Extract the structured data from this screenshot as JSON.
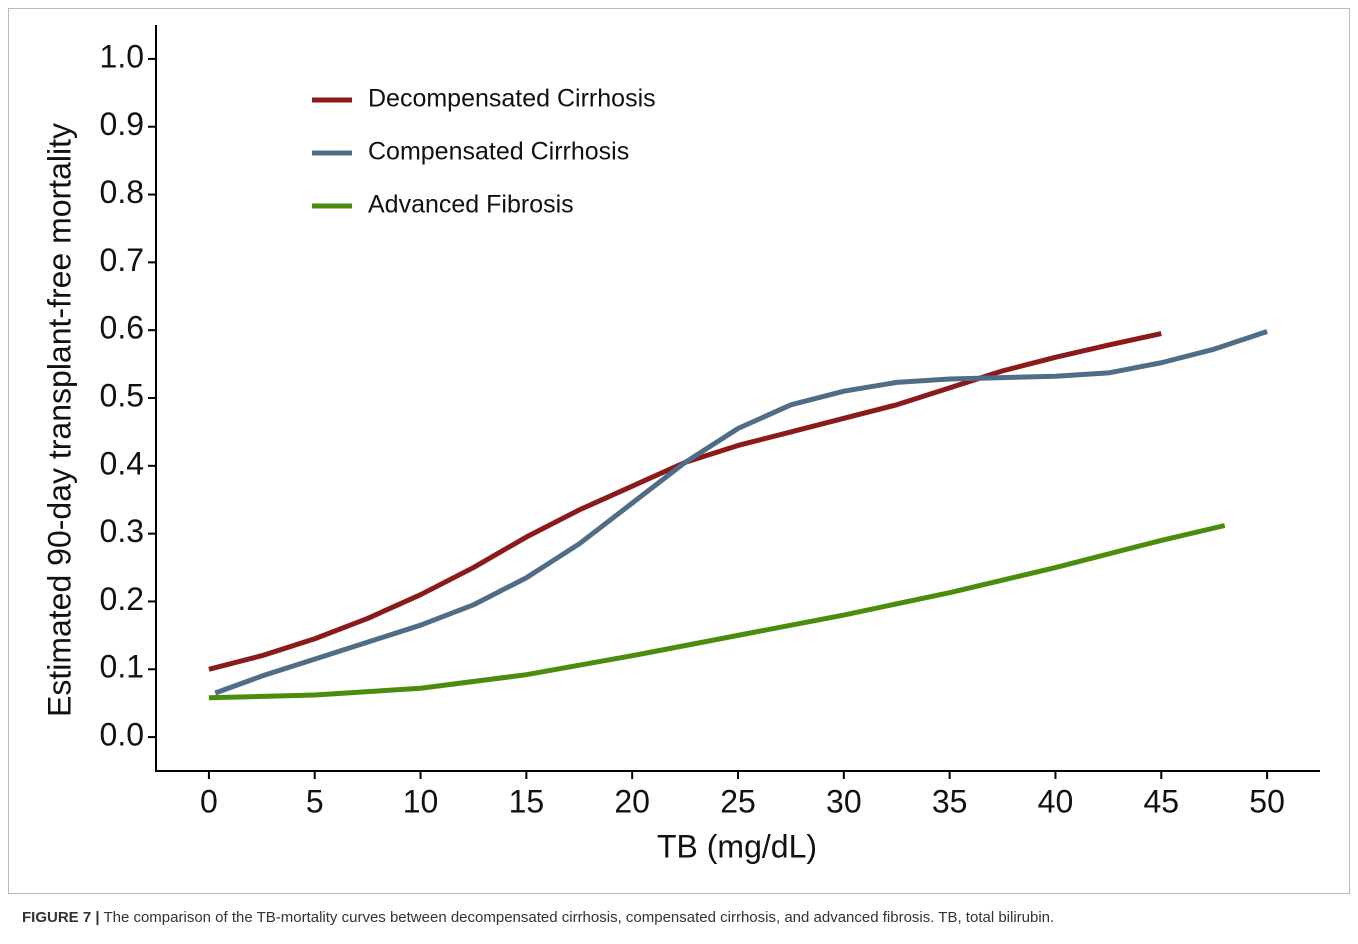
{
  "chart_data": {
    "type": "line",
    "x_label": "TB (mg/dL)",
    "y_label": "Estimated 90-day transplant-free mortality",
    "caption_label": "FIGURE 7 |",
    "caption": "The comparison of the TB-mortality curves between decompensated cirrhosis, compensated cirrhosis, and advanced fibrosis. TB, total bilirubin.",
    "xlim": [
      -2.5,
      52.5
    ],
    "ylim": [
      -0.05,
      1.05
    ],
    "xticks": [
      0,
      5,
      10,
      15,
      20,
      25,
      30,
      35,
      40,
      45,
      50
    ],
    "yticks": [
      {
        "value": 0,
        "label": "0.0"
      },
      0.1,
      0.2,
      0.3,
      0.4,
      0.5,
      0.6,
      0.7,
      0.8,
      0.9,
      {
        "value": 1,
        "label": "1.0"
      }
    ],
    "grid": false,
    "legend": "top-left",
    "series": [
      {
        "name": "Decompensated Cirrhosis",
        "color": "#8b1a1a",
        "x": [
          0,
          2.5,
          5,
          7.5,
          10,
          12.5,
          15,
          17.5,
          20,
          22.5,
          25,
          27.5,
          30,
          32.5,
          35,
          37.5,
          40,
          42.5,
          45
        ],
        "values": [
          0.1,
          0.12,
          0.145,
          0.175,
          0.21,
          0.25,
          0.295,
          0.335,
          0.37,
          0.405,
          0.43,
          0.45,
          0.47,
          0.49,
          0.515,
          0.54,
          0.56,
          0.578,
          0.595
        ]
      },
      {
        "name": "Compensated Cirrhosis",
        "color": "#4f6d86",
        "x": [
          0.3,
          2.5,
          5,
          7.5,
          10,
          12.5,
          15,
          17.5,
          20,
          22.5,
          25,
          27.5,
          30,
          32.5,
          35,
          37.5,
          40,
          42.5,
          45,
          47.5,
          50
        ],
        "values": [
          0.065,
          0.09,
          0.115,
          0.14,
          0.165,
          0.195,
          0.235,
          0.285,
          0.345,
          0.405,
          0.455,
          0.49,
          0.51,
          0.523,
          0.528,
          0.53,
          0.532,
          0.537,
          0.552,
          0.572,
          0.598
        ]
      },
      {
        "name": "Advanced Fibrosis",
        "color": "#4a8c0e",
        "x": [
          0,
          5,
          10,
          15,
          20,
          25,
          30,
          35,
          40,
          45,
          48
        ],
        "values": [
          0.058,
          0.062,
          0.072,
          0.092,
          0.12,
          0.15,
          0.18,
          0.213,
          0.25,
          0.29,
          0.312
        ]
      }
    ]
  }
}
